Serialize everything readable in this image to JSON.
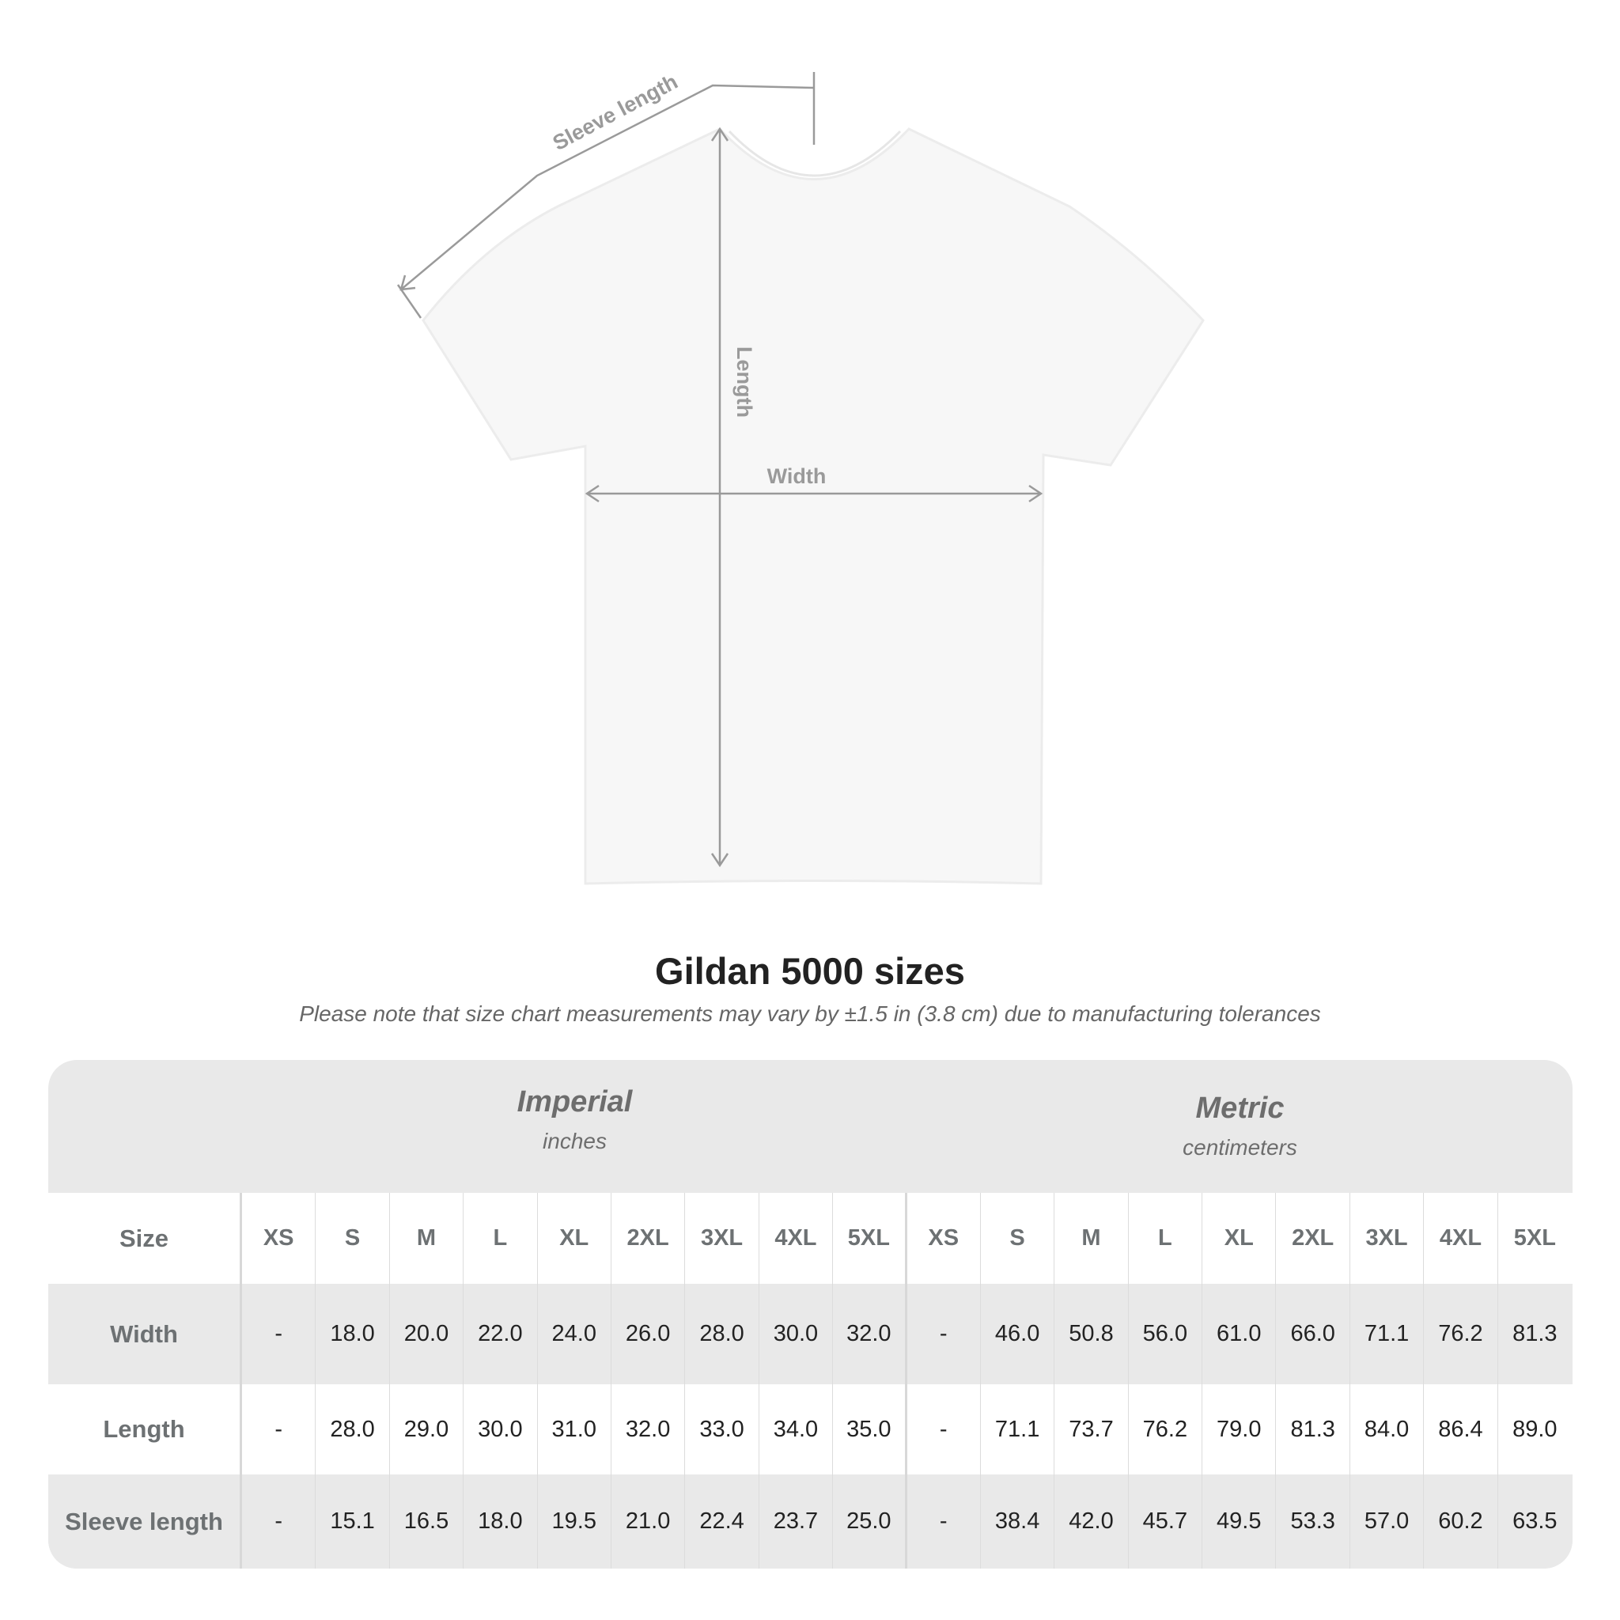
{
  "diagram": {
    "labels": {
      "sleeve": "Sleeve length",
      "length": "Length",
      "width": "Width"
    },
    "colors": {
      "shirt": "#f7f7f7",
      "lines": "#9a9a9a"
    }
  },
  "title": "Gildan 5000 sizes",
  "note": "Please note that size chart measurements may vary by ±1.5 in (3.8 cm) due to manufacturing tolerances",
  "table": {
    "imperial": {
      "title": "Imperial",
      "unit": "inches"
    },
    "metric": {
      "title": "Metric",
      "unit": "centimeters"
    },
    "size_label": "Size",
    "sizes": [
      "XS",
      "S",
      "M",
      "L",
      "XL",
      "2XL",
      "3XL",
      "4XL",
      "5XL"
    ],
    "rows": [
      {
        "label": "Width",
        "imperial": [
          "-",
          "18.0",
          "20.0",
          "22.0",
          "24.0",
          "26.0",
          "28.0",
          "30.0",
          "32.0"
        ],
        "metric": [
          "-",
          "46.0",
          "50.8",
          "56.0",
          "61.0",
          "66.0",
          "71.1",
          "76.2",
          "81.3"
        ]
      },
      {
        "label": "Length",
        "imperial": [
          "-",
          "28.0",
          "29.0",
          "30.0",
          "31.0",
          "32.0",
          "33.0",
          "34.0",
          "35.0"
        ],
        "metric": [
          "-",
          "71.1",
          "73.7",
          "76.2",
          "79.0",
          "81.3",
          "84.0",
          "86.4",
          "89.0"
        ]
      },
      {
        "label": "Sleeve length",
        "imperial": [
          "-",
          "15.1",
          "16.5",
          "18.0",
          "19.5",
          "21.0",
          "22.4",
          "23.7",
          "25.0"
        ],
        "metric": [
          "-",
          "38.4",
          "42.0",
          "45.7",
          "49.5",
          "53.3",
          "57.0",
          "60.2",
          "63.5"
        ]
      }
    ]
  }
}
